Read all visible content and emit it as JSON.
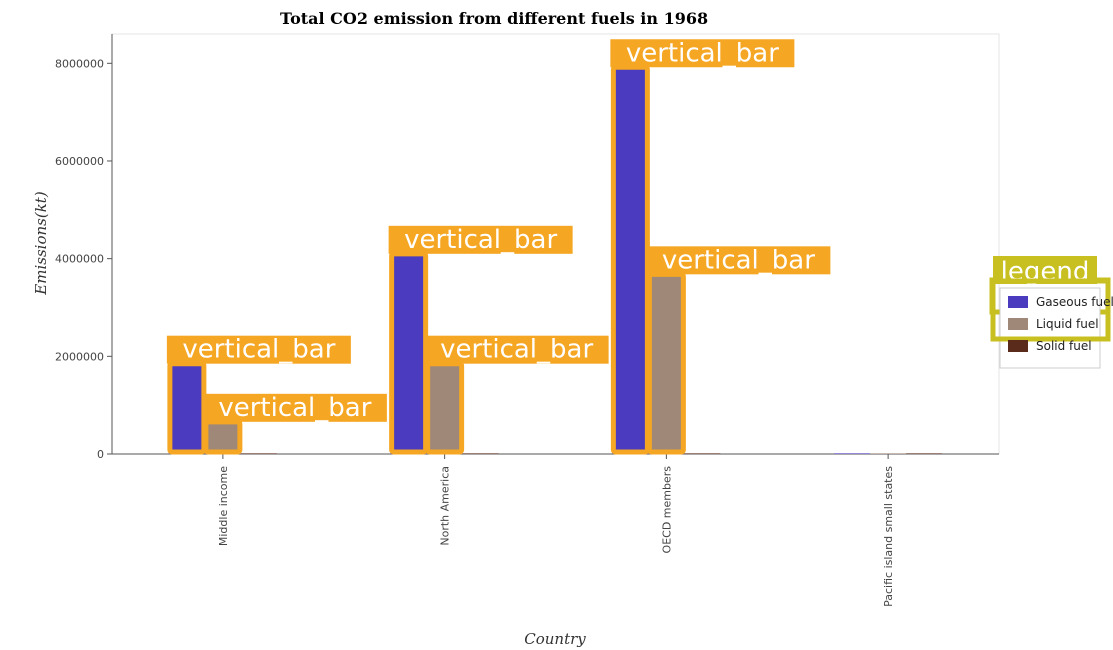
{
  "chart_data": {
    "type": "bar",
    "title": "Total CO2 emission from different fuels in 1968",
    "xlabel": "Country",
    "ylabel": "Emissions(kt)",
    "categories": [
      "Middle income",
      "North America",
      "OECD members",
      "Pacific island small states"
    ],
    "series": [
      {
        "name": "Gaseous fuel",
        "color": "#4b3bbf",
        "values": [
          1890000,
          4140000,
          7960000,
          1000
        ]
      },
      {
        "name": "Liquid fuel",
        "color": "#a08878",
        "values": [
          700000,
          1890000,
          3720000,
          1000
        ]
      },
      {
        "name": "Solid fuel",
        "color": "#5a2a1a",
        "values": [
          3000,
          3000,
          3000,
          0
        ]
      }
    ],
    "ylim": [
      0,
      8600000
    ],
    "yticks": [
      0,
      2000000,
      4000000,
      6000000,
      8000000
    ],
    "ytick_labels": [
      "0",
      "2000000",
      "4000000",
      "6000000",
      "8000000"
    ],
    "grid": false,
    "legend_position": "right",
    "annotation_text": "vertical_bar",
    "legend_annotation_text": "legend",
    "annotation_color": "#f5a623",
    "legend_annotation_color": "#c8c020"
  }
}
